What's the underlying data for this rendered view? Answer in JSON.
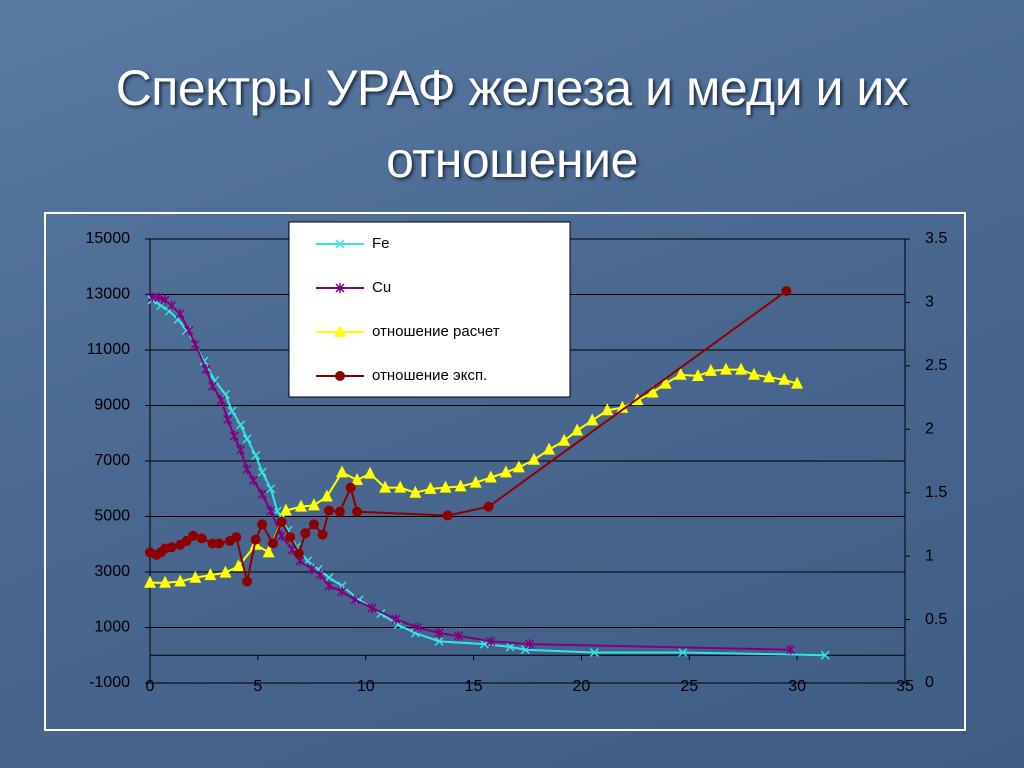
{
  "chart_data": {
    "type": "line",
    "title": "Спектры УРАФ железа и меди и их отношение",
    "xlim": [
      0,
      35
    ],
    "xticks": [
      0,
      5,
      10,
      15,
      20,
      25,
      30,
      35
    ],
    "ylim": [
      -1000,
      15000
    ],
    "yticks": [
      -1000,
      1000,
      3000,
      5000,
      7000,
      9000,
      11000,
      13000,
      15000
    ],
    "y2lim": [
      0,
      3.5
    ],
    "y2ticks": [
      0,
      0.5,
      1,
      1.5,
      2,
      2.5,
      3,
      3.5
    ],
    "grid": true,
    "legend": "top",
    "series": [
      {
        "name": "Fe",
        "color": "#33e6e6",
        "marker": "x",
        "x": [
          0.1,
          0.5,
          0.9,
          1.3,
          1.7,
          2.1,
          2.5,
          3.0,
          3.5,
          3.8,
          4.2,
          4.5,
          4.9,
          5.2,
          5.6,
          5.9,
          6.4,
          6.8,
          7.3,
          7.8,
          8.3,
          8.9,
          9.7,
          10.7,
          11.5,
          12.3,
          13.4,
          15.5,
          16.7,
          17.4,
          20.6,
          24.7,
          31.3
        ],
        "values": [
          12800,
          12600,
          12400,
          12100,
          11700,
          11200,
          10600,
          9900,
          9400,
          8800,
          8300,
          7800,
          7200,
          6600,
          6000,
          5200,
          4500,
          3900,
          3400,
          3100,
          2800,
          2500,
          2000,
          1500,
          1100,
          800,
          500,
          400,
          300,
          200,
          100,
          100,
          0
        ]
      },
      {
        "name": "Cu",
        "color": "#800080",
        "marker": "star",
        "x": [
          0.1,
          0.4,
          0.7,
          1.0,
          1.4,
          1.8,
          2.1,
          2.6,
          2.9,
          3.3,
          3.6,
          3.9,
          4.2,
          4.5,
          4.8,
          5.2,
          5.6,
          6.1,
          6.6,
          6.95,
          7.5,
          7.9,
          8.3,
          8.9,
          9.5,
          10.3,
          11.4,
          12.4,
          13.4,
          14.3,
          15.8,
          17.6,
          29.7
        ],
        "values": [
          12900,
          12900,
          12800,
          12600,
          12300,
          11700,
          11200,
          10300,
          9700,
          9200,
          8500,
          7900,
          7400,
          6700,
          6300,
          5800,
          5200,
          4300,
          3800,
          3400,
          3100,
          2900,
          2500,
          2300,
          2000,
          1700,
          1300,
          1000,
          800,
          700,
          500,
          400,
          200
        ]
      },
      {
        "name": "отношение расчет",
        "color": "#ffff00",
        "marker": "triangle",
        "axis": "y2",
        "x": [
          0,
          0.7,
          1.4,
          2.1,
          2.8,
          3.5,
          4.1,
          4.9,
          5.5,
          6.3,
          7.0,
          7.6,
          8.2,
          8.9,
          9.6,
          10.2,
          10.9,
          11.6,
          12.3,
          13.0,
          13.7,
          14.4,
          15.1,
          15.8,
          16.5,
          17.1,
          17.8,
          18.5,
          19.2,
          19.8,
          20.5,
          21.2,
          21.9,
          22.6,
          23.3,
          23.9,
          24.6,
          25.4,
          26.0,
          26.7,
          27.4,
          28.0,
          28.7,
          29.4,
          30.0
        ],
        "values": [
          0.79,
          0.79,
          0.8,
          0.83,
          0.85,
          0.87,
          0.92,
          1.09,
          1.03,
          1.36,
          1.39,
          1.4,
          1.47,
          1.66,
          1.6,
          1.65,
          1.54,
          1.54,
          1.5,
          1.53,
          1.54,
          1.55,
          1.58,
          1.62,
          1.66,
          1.7,
          1.76,
          1.84,
          1.91,
          1.99,
          2.07,
          2.15,
          2.17,
          2.23,
          2.29,
          2.36,
          2.43,
          2.42,
          2.46,
          2.47,
          2.47,
          2.43,
          2.41,
          2.39,
          2.36
        ]
      },
      {
        "name": "отношение эксп.",
        "color": "#8b0000",
        "marker": "circle",
        "axis": "y2",
        "x": [
          0,
          0.3,
          0.5,
          0.7,
          1.0,
          1.4,
          1.7,
          2.0,
          2.4,
          2.9,
          3.2,
          3.7,
          4.0,
          4.5,
          4.9,
          5.2,
          5.7,
          6.1,
          6.5,
          6.9,
          7.2,
          7.6,
          8.0,
          8.3,
          8.8,
          9.3,
          9.6,
          13.8,
          15.7,
          29.5
        ],
        "values": [
          1.03,
          1.01,
          1.03,
          1.06,
          1.07,
          1.09,
          1.12,
          1.16,
          1.14,
          1.1,
          1.1,
          1.12,
          1.15,
          0.8,
          1.13,
          1.25,
          1.1,
          1.27,
          1.15,
          1.02,
          1.18,
          1.25,
          1.17,
          1.36,
          1.35,
          1.54,
          1.35,
          1.32,
          1.39,
          3.09
        ]
      }
    ]
  }
}
